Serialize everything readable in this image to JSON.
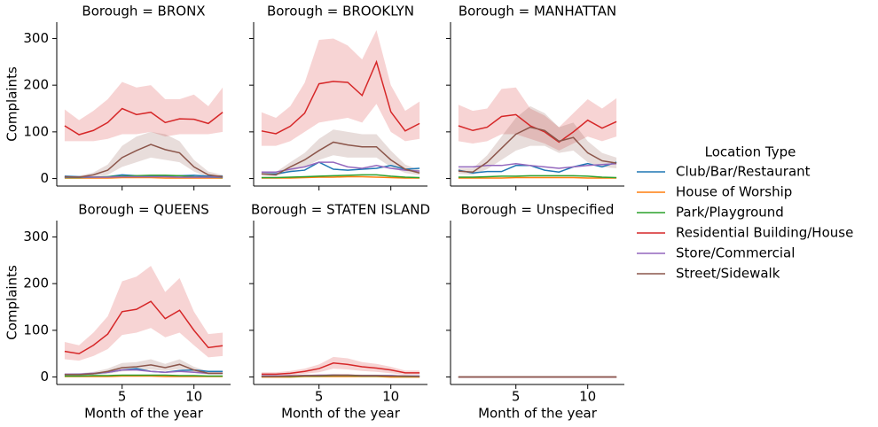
{
  "chart_data": [
    {
      "type": "line",
      "title": "Borough = BRONX",
      "ylabel": "Complaints",
      "legend_title": "Location Type",
      "x": [
        1,
        2,
        3,
        4,
        5,
        6,
        7,
        8,
        9,
        10,
        11,
        12
      ],
      "xlim": [
        0.45,
        12.55
      ],
      "xticks": [
        5,
        10
      ],
      "ylim": [
        -16,
        335
      ],
      "yticks": [
        0,
        100,
        200,
        300
      ],
      "series": [
        {
          "name": "Club/Bar/Restaurant",
          "color": "#1f77b4",
          "values": [
            5,
            4,
            3,
            4,
            8,
            6,
            5,
            5,
            6,
            7,
            5,
            5
          ]
        },
        {
          "name": "House of Worship",
          "color": "#ff7f0e",
          "values": [
            1,
            1,
            1,
            1,
            2,
            2,
            2,
            1,
            1,
            1,
            1,
            1
          ]
        },
        {
          "name": "Park/Playground",
          "color": "#2ca02c",
          "values": [
            2,
            2,
            3,
            4,
            5,
            6,
            7,
            7,
            6,
            4,
            3,
            2
          ]
        },
        {
          "name": "Residential Building/House",
          "color": "#d62728",
          "values": [
            113,
            94,
            103,
            120,
            150,
            137,
            142,
            120,
            128,
            127,
            118,
            142
          ],
          "lower": [
            80,
            80,
            80,
            85,
            95,
            95,
            100,
            90,
            95,
            95,
            95,
            100
          ],
          "upper": [
            148,
            125,
            145,
            170,
            207,
            195,
            200,
            170,
            170,
            180,
            155,
            195
          ]
        },
        {
          "name": "Store/Commercial",
          "color": "#9467bd",
          "values": [
            3,
            3,
            3,
            3,
            4,
            4,
            4,
            4,
            3,
            3,
            3,
            3
          ]
        },
        {
          "name": "Street/Sidewalk",
          "color": "#8c564b",
          "values": [
            4,
            3,
            8,
            18,
            45,
            60,
            73,
            62,
            55,
            25,
            8,
            4
          ],
          "lower": [
            2,
            1,
            3,
            8,
            25,
            35,
            45,
            40,
            35,
            15,
            3,
            1
          ],
          "upper": [
            6,
            6,
            13,
            30,
            70,
            90,
            100,
            95,
            80,
            40,
            15,
            8
          ]
        }
      ]
    },
    {
      "type": "line",
      "title": "Borough = BROOKLYN",
      "x": [
        1,
        2,
        3,
        4,
        5,
        6,
        7,
        8,
        9,
        10,
        11,
        12
      ],
      "xlim": [
        0.45,
        12.55
      ],
      "xticks": [
        5,
        10
      ],
      "ylim": [
        -16,
        335
      ],
      "yticks": [
        0,
        100,
        200,
        300
      ],
      "series": [
        {
          "name": "Club/Bar/Restaurant",
          "color": "#1f77b4",
          "values": [
            10,
            10,
            15,
            18,
            35,
            20,
            18,
            20,
            22,
            28,
            20,
            22
          ]
        },
        {
          "name": "House of Worship",
          "color": "#ff7f0e",
          "values": [
            1,
            1,
            1,
            2,
            3,
            3,
            4,
            4,
            3,
            2,
            1,
            1
          ]
        },
        {
          "name": "Park/Playground",
          "color": "#2ca02c",
          "values": [
            2,
            2,
            3,
            4,
            5,
            6,
            7,
            8,
            8,
            5,
            3,
            2
          ]
        },
        {
          "name": "Residential Building/House",
          "color": "#d62728",
          "values": [
            102,
            96,
            112,
            140,
            203,
            208,
            206,
            178,
            250,
            143,
            102,
            118
          ],
          "lower": [
            70,
            70,
            80,
            100,
            120,
            125,
            130,
            120,
            160,
            100,
            80,
            85
          ],
          "upper": [
            142,
            130,
            155,
            205,
            297,
            300,
            285,
            255,
            318,
            200,
            145,
            165
          ]
        },
        {
          "name": "Store/Commercial",
          "color": "#9467bd",
          "values": [
            14,
            14,
            20,
            25,
            35,
            35,
            25,
            22,
            28,
            22,
            18,
            16
          ]
        },
        {
          "name": "Street/Sidewalk",
          "color": "#8c564b",
          "values": [
            10,
            8,
            25,
            40,
            60,
            78,
            72,
            68,
            68,
            40,
            20,
            12
          ],
          "lower": [
            6,
            5,
            15,
            25,
            40,
            50,
            45,
            45,
            45,
            25,
            12,
            7
          ],
          "upper": [
            15,
            14,
            35,
            55,
            85,
            105,
            100,
            95,
            95,
            60,
            30,
            18
          ]
        }
      ]
    },
    {
      "type": "line",
      "title": "Borough = MANHATTAN",
      "x": [
        1,
        2,
        3,
        4,
        5,
        6,
        7,
        8,
        9,
        10,
        11,
        12
      ],
      "xlim": [
        0.45,
        12.55
      ],
      "xticks": [
        5,
        10
      ],
      "ylim": [
        -16,
        335
      ],
      "yticks": [
        0,
        100,
        200,
        300
      ],
      "series": [
        {
          "name": "Club/Bar/Restaurant",
          "color": "#1f77b4",
          "values": [
            18,
            12,
            15,
            15,
            28,
            28,
            18,
            14,
            25,
            32,
            25,
            35
          ]
        },
        {
          "name": "House of Worship",
          "color": "#ff7f0e",
          "values": [
            1,
            1,
            1,
            1,
            2,
            2,
            2,
            2,
            2,
            1,
            1,
            1
          ]
        },
        {
          "name": "Park/Playground",
          "color": "#2ca02c",
          "values": [
            3,
            3,
            4,
            5,
            5,
            6,
            6,
            6,
            6,
            5,
            3,
            2
          ]
        },
        {
          "name": "Residential Building/House",
          "color": "#d62728",
          "values": [
            113,
            103,
            110,
            133,
            137,
            113,
            100,
            78,
            100,
            125,
            108,
            122
          ],
          "lower": [
            80,
            75,
            80,
            95,
            95,
            85,
            75,
            60,
            75,
            90,
            80,
            90
          ],
          "upper": [
            158,
            145,
            150,
            192,
            195,
            150,
            135,
            110,
            140,
            170,
            150,
            172
          ]
        },
        {
          "name": "Store/Commercial",
          "color": "#9467bd",
          "values": [
            25,
            25,
            28,
            28,
            32,
            28,
            25,
            22,
            25,
            28,
            30,
            32
          ]
        },
        {
          "name": "Street/Sidewalk",
          "color": "#8c564b",
          "values": [
            16,
            14,
            35,
            65,
            95,
            110,
            103,
            80,
            88,
            55,
            38,
            33
          ],
          "lower": [
            10,
            8,
            20,
            40,
            60,
            70,
            70,
            55,
            60,
            35,
            25,
            22
          ],
          "upper": [
            22,
            22,
            50,
            90,
            130,
            155,
            140,
            110,
            120,
            80,
            55,
            45
          ]
        }
      ]
    },
    {
      "type": "line",
      "title": "Borough = QUEENS",
      "ylabel": "Complaints",
      "xlabel": "Month of the year",
      "x": [
        1,
        2,
        3,
        4,
        5,
        6,
        7,
        8,
        9,
        10,
        11,
        12
      ],
      "xlim": [
        0.45,
        12.55
      ],
      "xticks": [
        5,
        10
      ],
      "ylim": [
        -16,
        335
      ],
      "yticks": [
        0,
        100,
        200,
        300
      ],
      "series": [
        {
          "name": "Club/Bar/Restaurant",
          "color": "#1f77b4",
          "values": [
            5,
            6,
            7,
            10,
            15,
            18,
            12,
            10,
            14,
            15,
            12,
            12
          ]
        },
        {
          "name": "House of Worship",
          "color": "#ff7f0e",
          "values": [
            1,
            1,
            1,
            1,
            2,
            2,
            2,
            1,
            1,
            1,
            1,
            1
          ]
        },
        {
          "name": "Park/Playground",
          "color": "#2ca02c",
          "values": [
            2,
            2,
            3,
            3,
            4,
            4,
            4,
            4,
            3,
            3,
            2,
            2
          ]
        },
        {
          "name": "Residential Building/House",
          "color": "#d62728",
          "values": [
            55,
            50,
            68,
            92,
            140,
            145,
            162,
            125,
            143,
            100,
            63,
            67
          ],
          "lower": [
            38,
            35,
            45,
            60,
            90,
            95,
            105,
            85,
            95,
            68,
            42,
            45
          ],
          "upper": [
            75,
            68,
            95,
            130,
            205,
            215,
            238,
            182,
            212,
            140,
            92,
            95
          ]
        },
        {
          "name": "Store/Commercial",
          "color": "#9467bd",
          "values": [
            6,
            6,
            8,
            10,
            15,
            15,
            12,
            10,
            12,
            10,
            8,
            8
          ]
        },
        {
          "name": "Street/Sidewalk",
          "color": "#8c564b",
          "values": [
            5,
            5,
            7,
            12,
            20,
            22,
            26,
            20,
            27,
            15,
            8,
            8
          ],
          "lower": [
            3,
            3,
            4,
            7,
            12,
            14,
            16,
            13,
            17,
            9,
            5,
            5
          ],
          "upper": [
            8,
            8,
            11,
            18,
            30,
            32,
            38,
            28,
            38,
            22,
            12,
            12
          ]
        }
      ]
    },
    {
      "type": "line",
      "title": "Borough = STATEN ISLAND",
      "xlabel": "Month of the year",
      "x": [
        1,
        2,
        3,
        4,
        5,
        6,
        7,
        8,
        9,
        10,
        11,
        12
      ],
      "xlim": [
        0.45,
        12.55
      ],
      "xticks": [
        5,
        10
      ],
      "ylim": [
        -16,
        335
      ],
      "yticks": [
        0,
        100,
        200,
        300
      ],
      "series": [
        {
          "name": "Club/Bar/Restaurant",
          "color": "#1f77b4",
          "values": [
            2,
            2,
            2,
            3,
            3,
            4,
            3,
            3,
            3,
            3,
            2,
            2
          ]
        },
        {
          "name": "House of Worship",
          "color": "#ff7f0e",
          "values": [
            0,
            0,
            0,
            1,
            1,
            1,
            1,
            1,
            1,
            0,
            0,
            0
          ]
        },
        {
          "name": "Park/Playground",
          "color": "#2ca02c",
          "values": [
            1,
            1,
            1,
            2,
            2,
            3,
            3,
            2,
            2,
            2,
            1,
            1
          ]
        },
        {
          "name": "Residential Building/House",
          "color": "#d62728",
          "values": [
            6,
            6,
            8,
            12,
            18,
            30,
            27,
            22,
            19,
            15,
            9,
            9
          ],
          "lower": [
            3,
            3,
            4,
            7,
            10,
            18,
            16,
            13,
            11,
            8,
            5,
            5
          ],
          "upper": [
            10,
            10,
            13,
            18,
            27,
            43,
            40,
            32,
            28,
            22,
            14,
            14
          ]
        },
        {
          "name": "Store/Commercial",
          "color": "#9467bd",
          "values": [
            2,
            2,
            3,
            3,
            4,
            4,
            4,
            3,
            3,
            3,
            2,
            2
          ]
        },
        {
          "name": "Street/Sidewalk",
          "color": "#8c564b",
          "values": [
            1,
            1,
            2,
            3,
            3,
            4,
            4,
            3,
            3,
            2,
            2,
            1
          ],
          "lower": [
            0,
            0,
            1,
            1,
            1,
            2,
            2,
            1,
            1,
            1,
            1,
            0
          ],
          "upper": [
            2,
            2,
            3,
            5,
            5,
            6,
            6,
            5,
            5,
            4,
            3,
            2
          ]
        }
      ]
    },
    {
      "type": "line",
      "title": "Borough = Unspecified",
      "xlabel": "Month of the year",
      "x": [
        1,
        2,
        3,
        4,
        5,
        6,
        7,
        8,
        9,
        10,
        11,
        12
      ],
      "xlim": [
        0.45,
        12.55
      ],
      "xticks": [
        5,
        10
      ],
      "ylim": [
        -16,
        335
      ],
      "yticks": [
        0,
        100,
        200,
        300
      ],
      "series": [
        {
          "name": "Club/Bar/Restaurant",
          "color": "#1f77b4",
          "values": [
            0,
            0,
            0,
            0,
            0,
            0,
            0,
            0,
            0,
            0,
            0,
            0
          ]
        },
        {
          "name": "House of Worship",
          "color": "#ff7f0e",
          "values": [
            0,
            0,
            0,
            0,
            0,
            0,
            0,
            0,
            0,
            0,
            0,
            0
          ]
        },
        {
          "name": "Park/Playground",
          "color": "#2ca02c",
          "values": [
            0,
            0,
            0,
            0,
            0,
            0,
            0,
            0,
            0,
            0,
            0,
            0
          ]
        },
        {
          "name": "Residential Building/House",
          "color": "#d62728",
          "values": [
            0,
            0,
            0,
            0,
            0,
            0,
            0,
            0,
            0,
            0,
            0,
            0
          ]
        },
        {
          "name": "Store/Commercial",
          "color": "#9467bd",
          "values": [
            0,
            0,
            0,
            0,
            0,
            0,
            0,
            0,
            0,
            0,
            0,
            0
          ]
        },
        {
          "name": "Street/Sidewalk",
          "color": "#8c564b",
          "values": [
            0,
            0,
            0,
            0,
            0,
            0,
            0,
            0,
            0,
            0,
            0,
            0
          ]
        }
      ]
    }
  ]
}
